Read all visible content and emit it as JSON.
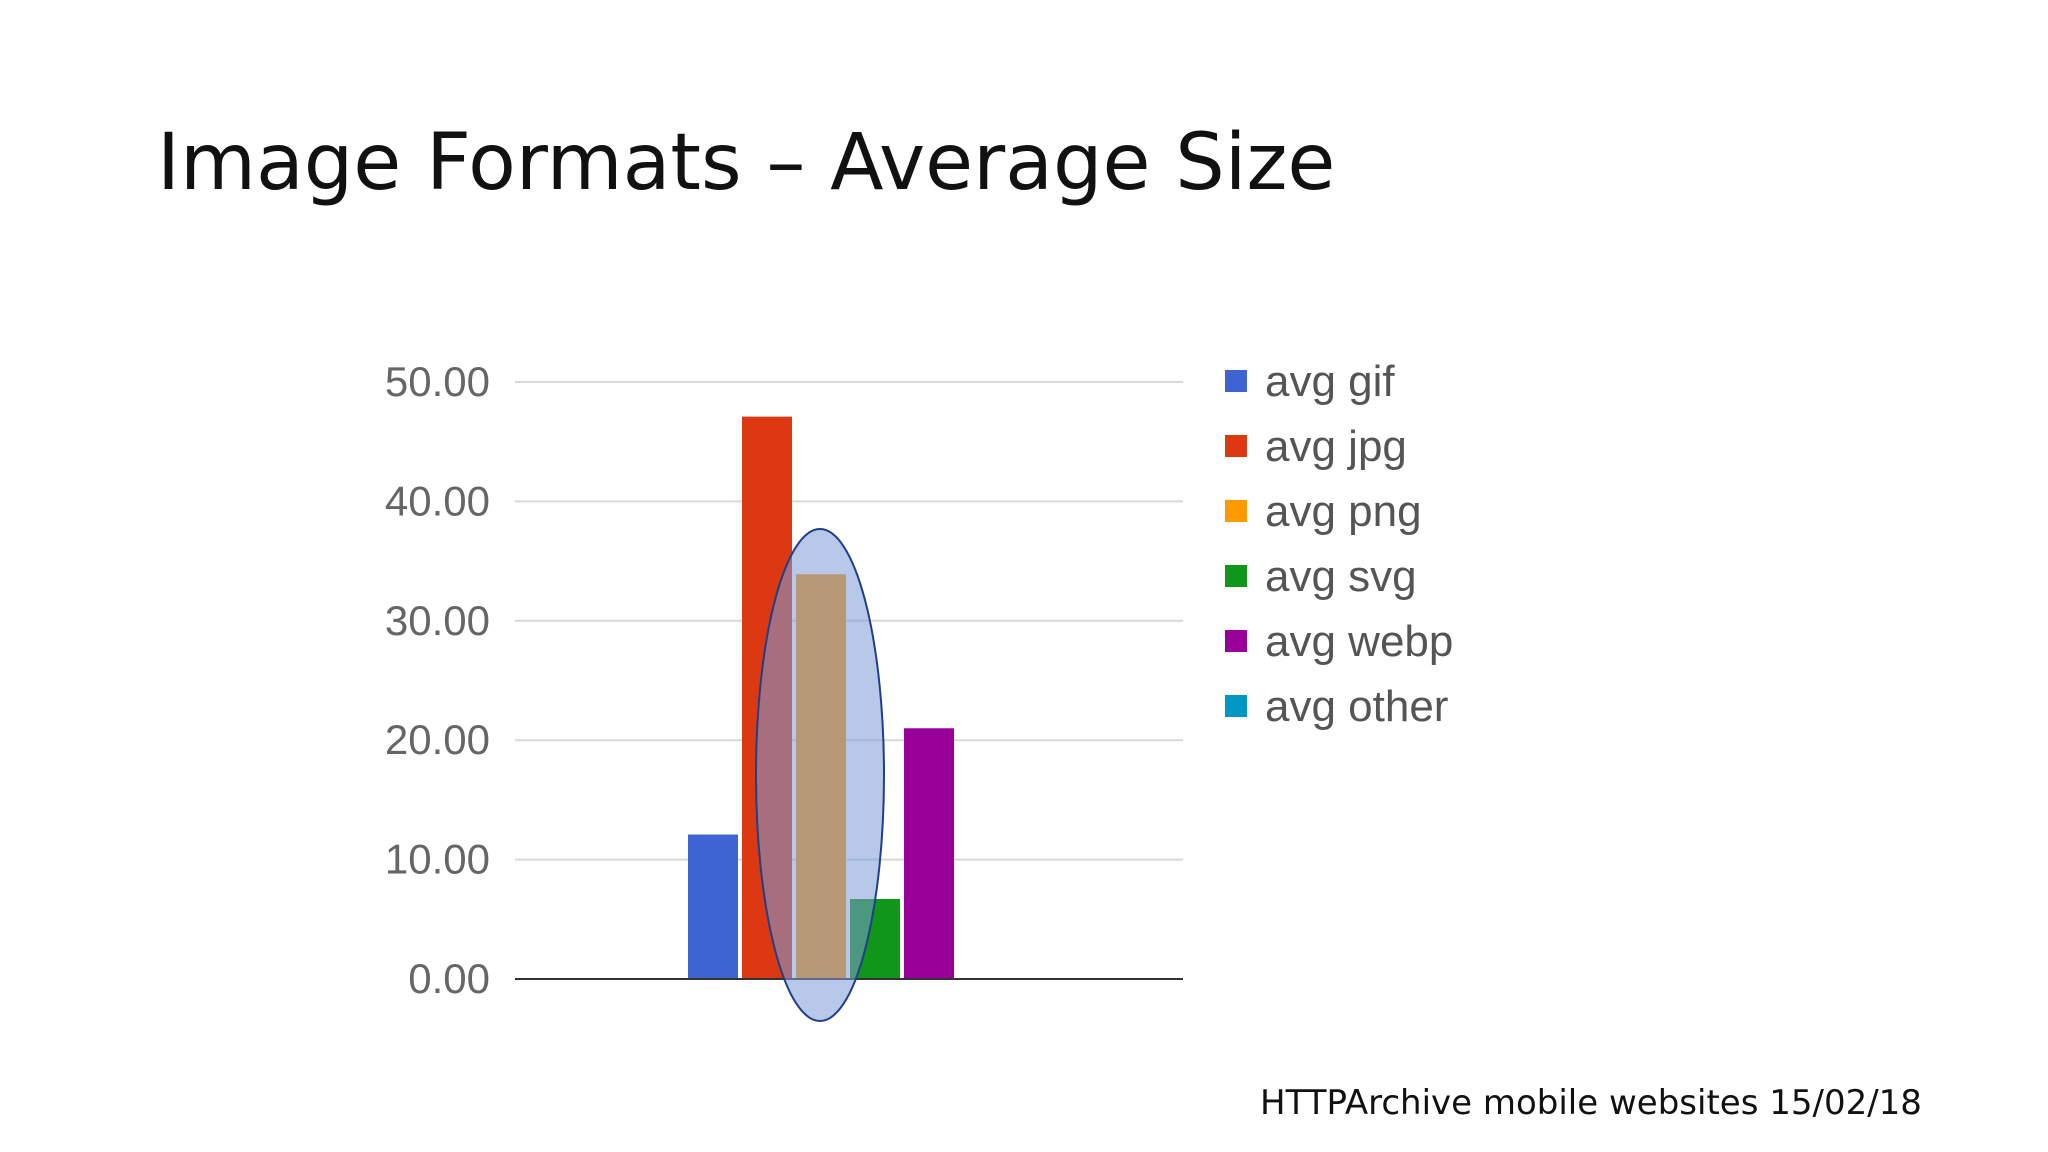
{
  "slide": {
    "title": "Image Formats – Average Size",
    "source_note": "HTTPArchive mobile websites 15/02/18"
  },
  "chart_data": {
    "type": "bar",
    "categories": [
      ""
    ],
    "series": [
      {
        "name": "avg gif",
        "values": [
          12.1
        ],
        "color": "#3d64d1"
      },
      {
        "name": "avg jpg",
        "values": [
          47.1
        ],
        "color": "#dc3912"
      },
      {
        "name": "avg png",
        "values": [
          33.9
        ],
        "color": "#ff9900"
      },
      {
        "name": "avg svg",
        "values": [
          6.7
        ],
        "color": "#109618"
      },
      {
        "name": "avg webp",
        "values": [
          21.0
        ],
        "color": "#990099"
      },
      {
        "name": "avg other",
        "values": [
          0
        ],
        "color": "#0099c6"
      }
    ],
    "ylim": [
      0,
      50
    ],
    "yticks": [
      "0.00",
      "10.00",
      "20.00",
      "30.00",
      "40.00",
      "50.00"
    ],
    "xlabel": "",
    "ylabel": "",
    "grid": true,
    "legend": "right",
    "highlight": {
      "series": "avg png",
      "shape": "ellipse",
      "color": "#7b9bd6"
    }
  }
}
